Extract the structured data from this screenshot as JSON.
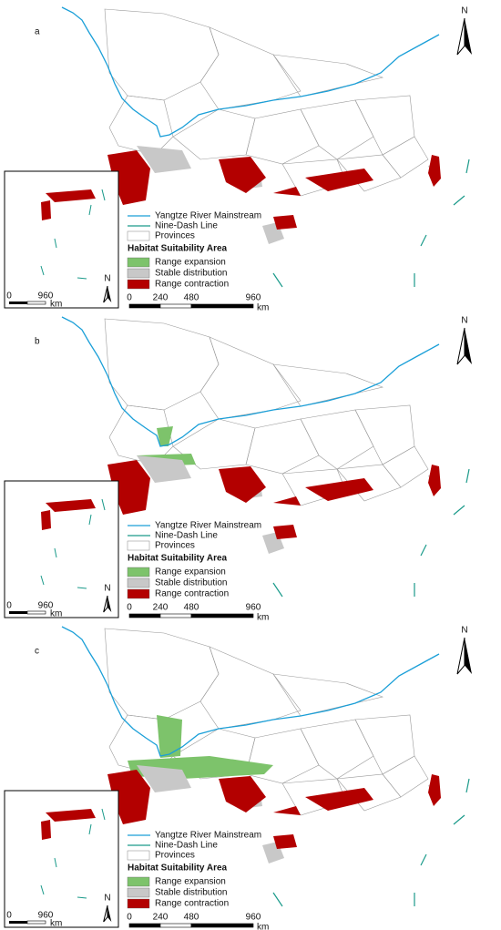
{
  "classes": [
    {
      "label": "Range expansion",
      "color": "#7dc36b"
    },
    {
      "label": "Stable distribution",
      "color": "#c8c8c8"
    },
    {
      "label": "Range contraction",
      "color": "#b30000"
    }
  ],
  "lines": [
    {
      "label": "Yangtze River Mainstream",
      "color": "#1a9fd8"
    },
    {
      "label": "Nine-Dash Line",
      "color": "#1a9a8a"
    },
    {
      "label": "Provinces",
      "color": "#9a9a9a"
    }
  ],
  "panels": [
    {
      "label": "a",
      "north": "N",
      "legend_title": "Habitat Suitability Area",
      "scale": {
        "ticks": [
          0,
          240,
          480,
          960
        ],
        "unit": "km"
      },
      "inset": {
        "ticks": [
          0,
          960
        ],
        "unit": "km",
        "north": "N"
      }
    },
    {
      "label": "b",
      "north": "N",
      "legend_title": "Habitat Suitability Area",
      "scale": {
        "ticks": [
          0,
          240,
          480,
          960
        ],
        "unit": "km"
      },
      "inset": {
        "ticks": [
          0,
          960
        ],
        "unit": "km",
        "north": "N"
      }
    },
    {
      "label": "c",
      "north": "N",
      "legend_title": "Habitat Suitability Area",
      "scale": {
        "ticks": [
          0,
          240,
          480,
          960
        ],
        "unit": "km"
      },
      "inset": {
        "ticks": [
          0,
          960
        ],
        "unit": "km",
        "north": "N"
      }
    }
  ]
}
